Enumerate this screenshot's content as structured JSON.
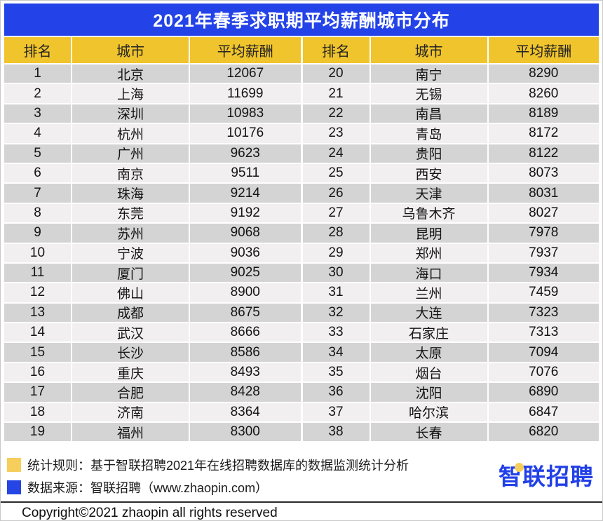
{
  "title": "2021年春季求职期平均薪酬城市分布",
  "table": {
    "headers": [
      "排名",
      "城市",
      "平均薪酬"
    ],
    "left_rows": [
      {
        "rank": "1",
        "city": "北京",
        "salary": "12067"
      },
      {
        "rank": "2",
        "city": "上海",
        "salary": "11699"
      },
      {
        "rank": "3",
        "city": "深圳",
        "salary": "10983"
      },
      {
        "rank": "4",
        "city": "杭州",
        "salary": "10176"
      },
      {
        "rank": "5",
        "city": "广州",
        "salary": "9623"
      },
      {
        "rank": "6",
        "city": "南京",
        "salary": "9511"
      },
      {
        "rank": "7",
        "city": "珠海",
        "salary": "9214"
      },
      {
        "rank": "8",
        "city": "东莞",
        "salary": "9192"
      },
      {
        "rank": "9",
        "city": "苏州",
        "salary": "9068"
      },
      {
        "rank": "10",
        "city": "宁波",
        "salary": "9036"
      },
      {
        "rank": "11",
        "city": "厦门",
        "salary": "9025"
      },
      {
        "rank": "12",
        "city": "佛山",
        "salary": "8900"
      },
      {
        "rank": "13",
        "city": "成都",
        "salary": "8675"
      },
      {
        "rank": "14",
        "city": "武汉",
        "salary": "8666"
      },
      {
        "rank": "15",
        "city": "长沙",
        "salary": "8586"
      },
      {
        "rank": "16",
        "city": "重庆",
        "salary": "8493"
      },
      {
        "rank": "17",
        "city": "合肥",
        "salary": "8428"
      },
      {
        "rank": "18",
        "city": "济南",
        "salary": "8364"
      },
      {
        "rank": "19",
        "city": "福州",
        "salary": "8300"
      }
    ],
    "right_rows": [
      {
        "rank": "20",
        "city": "南宁",
        "salary": "8290"
      },
      {
        "rank": "21",
        "city": "无锡",
        "salary": "8260"
      },
      {
        "rank": "22",
        "city": "南昌",
        "salary": "8189"
      },
      {
        "rank": "23",
        "city": "青岛",
        "salary": "8172"
      },
      {
        "rank": "24",
        "city": "贵阳",
        "salary": "8122"
      },
      {
        "rank": "25",
        "city": "西安",
        "salary": "8073"
      },
      {
        "rank": "26",
        "city": "天津",
        "salary": "8031"
      },
      {
        "rank": "27",
        "city": "乌鲁木齐",
        "salary": "8027"
      },
      {
        "rank": "28",
        "city": "昆明",
        "salary": "7978"
      },
      {
        "rank": "29",
        "city": "郑州",
        "salary": "7937"
      },
      {
        "rank": "30",
        "city": "海口",
        "salary": "7934"
      },
      {
        "rank": "31",
        "city": "兰州",
        "salary": "7459"
      },
      {
        "rank": "32",
        "city": "大连",
        "salary": "7323"
      },
      {
        "rank": "33",
        "city": "石家庄",
        "salary": "7313"
      },
      {
        "rank": "34",
        "city": "太原",
        "salary": "7094"
      },
      {
        "rank": "35",
        "city": "烟台",
        "salary": "7076"
      },
      {
        "rank": "36",
        "city": "沈阳",
        "salary": "6890"
      },
      {
        "rank": "37",
        "city": "哈尔滨",
        "salary": "6847"
      },
      {
        "rank": "38",
        "city": "长春",
        "salary": "6820"
      }
    ]
  },
  "footer": {
    "stat_rule": "统计规则：基于智联招聘2021年在线招聘数据库的数据监测统计分析",
    "data_source": "数据来源：智联招聘（www.zhaopin.com）",
    "logo": {
      "first": "智",
      "rest": "联招聘"
    },
    "copyright": "Copyright©2021 zhaopin all rights reserved"
  },
  "colors": {
    "title_bar_blue": "#2343E8",
    "header_yellow": "#F0C42C",
    "row_dark": "#D4D4D4",
    "row_light": "#F1EFEF",
    "legend_yellow": "#F6CE5C",
    "legend_blue": "#2545E4",
    "logo_blue": "#2240E8"
  },
  "chart_data": {
    "type": "table",
    "title": "2021年春季求职期平均薪酬城市分布",
    "columns": [
      "排名",
      "城市",
      "平均薪酬"
    ],
    "rows": [
      [
        1,
        "北京",
        12067
      ],
      [
        2,
        "上海",
        11699
      ],
      [
        3,
        "深圳",
        10983
      ],
      [
        4,
        "杭州",
        10176
      ],
      [
        5,
        "广州",
        9623
      ],
      [
        6,
        "南京",
        9511
      ],
      [
        7,
        "珠海",
        9214
      ],
      [
        8,
        "东莞",
        9192
      ],
      [
        9,
        "苏州",
        9068
      ],
      [
        10,
        "宁波",
        9036
      ],
      [
        11,
        "厦门",
        9025
      ],
      [
        12,
        "佛山",
        8900
      ],
      [
        13,
        "成都",
        8675
      ],
      [
        14,
        "武汉",
        8666
      ],
      [
        15,
        "长沙",
        8586
      ],
      [
        16,
        "重庆",
        8493
      ],
      [
        17,
        "合肥",
        8428
      ],
      [
        18,
        "济南",
        8364
      ],
      [
        19,
        "福州",
        8300
      ],
      [
        20,
        "南宁",
        8290
      ],
      [
        21,
        "无锡",
        8260
      ],
      [
        22,
        "南昌",
        8189
      ],
      [
        23,
        "青岛",
        8172
      ],
      [
        24,
        "贵阳",
        8122
      ],
      [
        25,
        "西安",
        8073
      ],
      [
        26,
        "天津",
        8031
      ],
      [
        27,
        "乌鲁木齐",
        8027
      ],
      [
        28,
        "昆明",
        7978
      ],
      [
        29,
        "郑州",
        7937
      ],
      [
        30,
        "海口",
        7934
      ],
      [
        31,
        "兰州",
        7459
      ],
      [
        32,
        "大连",
        7323
      ],
      [
        33,
        "石家庄",
        7313
      ],
      [
        34,
        "太原",
        7094
      ],
      [
        35,
        "烟台",
        7076
      ],
      [
        36,
        "沈阳",
        6890
      ],
      [
        37,
        "哈尔滨",
        6847
      ],
      [
        38,
        "长春",
        6820
      ]
    ],
    "notes": [
      "统计规则：基于智联招聘2021年在线招聘数据库的数据监测统计分析",
      "数据来源：智联招聘（www.zhaopin.com）"
    ]
  }
}
